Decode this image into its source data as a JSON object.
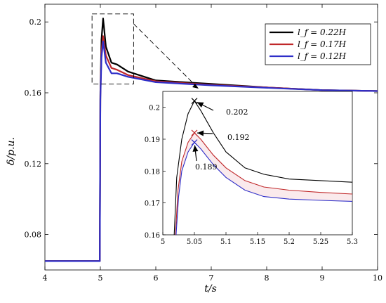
{
  "chart_data": [
    {
      "type": "line",
      "title": "",
      "xlabel": "t/s",
      "ylabel": "δ/p.u.",
      "xlim": [
        4,
        10
      ],
      "ylim": [
        0.06,
        0.21
      ],
      "xticks": [
        "4",
        "5",
        "6",
        "7",
        "8",
        "9",
        "10"
      ],
      "yticks": [
        "0.08",
        "0.12",
        "0.16",
        "0.2"
      ],
      "grid": false,
      "legend_position": "top-right",
      "series": [
        {
          "name": "l_f = 0.22H",
          "color": "#000000",
          "x": [
            4,
            4.99,
            5.0,
            5.02,
            5.05,
            5.1,
            5.2,
            5.3,
            5.5,
            6,
            7,
            8,
            9,
            10
          ],
          "y": [
            0.065,
            0.065,
            0.16,
            0.19,
            0.202,
            0.186,
            0.177,
            0.176,
            0.172,
            0.167,
            0.165,
            0.163,
            0.1615,
            0.161
          ]
        },
        {
          "name": "l_f = 0.17H",
          "color": "#c0282a",
          "x": [
            4,
            4.99,
            5.0,
            5.02,
            5.05,
            5.1,
            5.2,
            5.3,
            5.5,
            6,
            7,
            8,
            9,
            10
          ],
          "y": [
            0.065,
            0.065,
            0.158,
            0.183,
            0.192,
            0.181,
            0.174,
            0.173,
            0.17,
            0.1665,
            0.1645,
            0.163,
            0.1615,
            0.161
          ]
        },
        {
          "name": "l_f = 0.12H",
          "color": "#2e2ec8",
          "x": [
            4,
            4.99,
            5.0,
            5.02,
            5.05,
            5.1,
            5.2,
            5.3,
            5.5,
            6,
            7,
            8,
            9,
            10
          ],
          "y": [
            0.065,
            0.065,
            0.156,
            0.18,
            0.189,
            0.177,
            0.171,
            0.171,
            0.169,
            0.166,
            0.1642,
            0.1628,
            0.1615,
            0.161
          ]
        }
      ]
    },
    {
      "type": "line",
      "title": "",
      "xlim": [
        5,
        5.3
      ],
      "ylim": [
        0.16,
        0.205
      ],
      "xticks": [
        "5",
        "5.05",
        "5.1",
        "5.15",
        "5.2",
        "5.25",
        "5.3"
      ],
      "yticks": [
        "0.16",
        "0.17",
        "0.18",
        "0.19",
        "0.2"
      ],
      "grid": false,
      "annotations": [
        {
          "x": 5.05,
          "y": 0.202,
          "text": "0.202"
        },
        {
          "x": 5.05,
          "y": 0.192,
          "text": "0.192"
        },
        {
          "x": 5.05,
          "y": 0.189,
          "text": "0.189"
        }
      ],
      "series": [
        {
          "name": "l_f = 0.22H",
          "color": "#000000",
          "x": [
            5.018,
            5.022,
            5.03,
            5.04,
            5.05,
            5.06,
            5.08,
            5.1,
            5.13,
            5.16,
            5.2,
            5.25,
            5.3
          ],
          "y": [
            0.16,
            0.178,
            0.19,
            0.198,
            0.202,
            0.199,
            0.192,
            0.186,
            0.181,
            0.179,
            0.1775,
            0.177,
            0.1765
          ]
        },
        {
          "name": "l_f = 0.17H",
          "color": "#c0282a",
          "x": [
            5.02,
            5.024,
            5.03,
            5.04,
            5.05,
            5.06,
            5.08,
            5.1,
            5.13,
            5.16,
            5.2,
            5.25,
            5.3
          ],
          "y": [
            0.16,
            0.174,
            0.183,
            0.189,
            0.192,
            0.19,
            0.185,
            0.181,
            0.177,
            0.175,
            0.174,
            0.1733,
            0.1728
          ]
        },
        {
          "name": "l_f = 0.12H",
          "color": "#2e2ec8",
          "x": [
            5.021,
            5.025,
            5.03,
            5.04,
            5.05,
            5.06,
            5.08,
            5.1,
            5.13,
            5.16,
            5.2,
            5.25,
            5.3
          ],
          "y": [
            0.16,
            0.172,
            0.18,
            0.186,
            0.189,
            0.187,
            0.182,
            0.178,
            0.174,
            0.172,
            0.1712,
            0.1708,
            0.1705
          ]
        }
      ]
    }
  ]
}
